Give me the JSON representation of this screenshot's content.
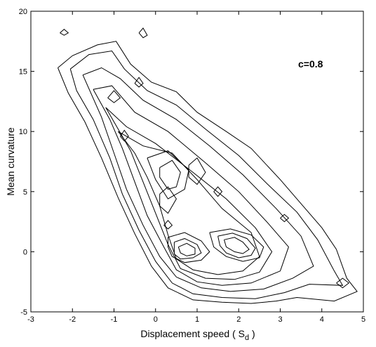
{
  "chart_data": {
    "type": "contour",
    "xlabel": "Displacement speed ( S",
    "xlabel_subscript": "d",
    "xlabel_suffix": " )",
    "ylabel": "Mean curvature",
    "annotation": "c=0.8",
    "xlim": [
      -3,
      5
    ],
    "ylim": [
      -5,
      20
    ],
    "xticks": [
      -3,
      -2,
      -1,
      0,
      1,
      2,
      3,
      4,
      5
    ],
    "yticks": [
      -5,
      0,
      5,
      10,
      15,
      20
    ],
    "xtick_labels": [
      "-3",
      "-2",
      "-1",
      "0",
      "1",
      "2",
      "3",
      "4",
      "5"
    ],
    "ytick_labels": [
      "-5",
      "0",
      "5",
      "10",
      "15",
      "20"
    ],
    "grid": false,
    "line_color": "#000000",
    "contours": [
      {
        "level": 1,
        "points": [
          [
            -2.35,
            15.3
          ],
          [
            -2.0,
            16.3
          ],
          [
            -1.4,
            17.2
          ],
          [
            -0.95,
            17.5
          ],
          [
            -0.6,
            15.6
          ],
          [
            -0.1,
            14.1
          ],
          [
            0.5,
            13.3
          ],
          [
            1.0,
            11.6
          ],
          [
            1.7,
            10.0
          ],
          [
            2.3,
            8.6
          ],
          [
            3.0,
            6.0
          ],
          [
            3.5,
            4.0
          ],
          [
            4.0,
            2.0
          ],
          [
            4.35,
            0.2
          ],
          [
            4.6,
            -2.2
          ],
          [
            4.85,
            -3.3
          ],
          [
            4.3,
            -4.1
          ],
          [
            3.4,
            -3.8
          ],
          [
            2.9,
            -4.1
          ],
          [
            2.3,
            -4.3
          ],
          [
            1.6,
            -4.2
          ],
          [
            0.9,
            -4.0
          ],
          [
            0.3,
            -3.0
          ],
          [
            -0.1,
            -1.2
          ],
          [
            -0.5,
            1.5
          ],
          [
            -0.9,
            4.5
          ],
          [
            -1.3,
            7.8
          ],
          [
            -1.7,
            10.8
          ],
          [
            -2.1,
            13.2
          ],
          [
            -2.35,
            15.3
          ]
        ]
      },
      {
        "level": 2,
        "points": [
          [
            -2.05,
            15.2
          ],
          [
            -1.6,
            16.4
          ],
          [
            -1.05,
            16.7
          ],
          [
            -0.75,
            15.2
          ],
          [
            -0.2,
            13.4
          ],
          [
            0.5,
            12.2
          ],
          [
            1.2,
            10.2
          ],
          [
            2.0,
            8.0
          ],
          [
            2.7,
            5.6
          ],
          [
            3.4,
            3.3
          ],
          [
            3.9,
            1.0
          ],
          [
            4.3,
            -1.6
          ],
          [
            4.5,
            -2.8
          ],
          [
            3.7,
            -2.7
          ],
          [
            3.1,
            -3.4
          ],
          [
            2.4,
            -3.9
          ],
          [
            1.6,
            -3.8
          ],
          [
            0.9,
            -3.5
          ],
          [
            0.4,
            -2.6
          ],
          [
            0.0,
            -0.8
          ],
          [
            -0.4,
            1.8
          ],
          [
            -0.8,
            4.8
          ],
          [
            -1.1,
            7.8
          ],
          [
            -1.5,
            11.0
          ],
          [
            -1.9,
            13.4
          ],
          [
            -2.05,
            15.2
          ]
        ]
      },
      {
        "level": 3,
        "points": [
          [
            -1.75,
            14.7
          ],
          [
            -1.3,
            15.3
          ],
          [
            -0.85,
            14.4
          ],
          [
            -0.3,
            12.6
          ],
          [
            0.5,
            11.0
          ],
          [
            1.3,
            8.8
          ],
          [
            2.1,
            6.4
          ],
          [
            2.9,
            3.6
          ],
          [
            3.5,
            1.3
          ],
          [
            3.8,
            -1.2
          ],
          [
            3.3,
            -2.2
          ],
          [
            2.6,
            -3.1
          ],
          [
            1.8,
            -3.3
          ],
          [
            1.1,
            -3.0
          ],
          [
            0.5,
            -2.1
          ],
          [
            0.1,
            -0.4
          ],
          [
            -0.3,
            2.2
          ],
          [
            -0.7,
            5.2
          ],
          [
            -1.0,
            8.2
          ],
          [
            -1.3,
            11.2
          ],
          [
            -1.75,
            14.7
          ]
        ]
      },
      {
        "level": 4,
        "points": [
          [
            -1.5,
            13.5
          ],
          [
            -1.05,
            13.8
          ],
          [
            -0.5,
            11.6
          ],
          [
            0.3,
            10.0
          ],
          [
            1.2,
            7.4
          ],
          [
            2.0,
            5.0
          ],
          [
            2.7,
            2.4
          ],
          [
            3.2,
            0.4
          ],
          [
            3.0,
            -1.6
          ],
          [
            2.3,
            -2.6
          ],
          [
            1.6,
            -2.8
          ],
          [
            1.0,
            -2.5
          ],
          [
            0.5,
            -1.5
          ],
          [
            0.2,
            0.4
          ],
          [
            -0.2,
            3.0
          ],
          [
            -0.5,
            5.8
          ],
          [
            -0.8,
            8.6
          ],
          [
            -1.1,
            11.0
          ],
          [
            -1.5,
            13.5
          ]
        ]
      },
      {
        "level": 5,
        "points": [
          [
            -1.2,
            12.0
          ],
          [
            -0.7,
            10.4
          ],
          [
            0.0,
            9.0
          ],
          [
            0.9,
            6.6
          ],
          [
            1.7,
            4.4
          ],
          [
            2.4,
            2.0
          ],
          [
            2.8,
            0.0
          ],
          [
            2.5,
            -1.7
          ],
          [
            1.9,
            -2.3
          ],
          [
            1.2,
            -2.2
          ],
          [
            0.6,
            -1.4
          ],
          [
            0.3,
            0.6
          ],
          [
            0.0,
            3.2
          ],
          [
            -0.3,
            5.8
          ],
          [
            -0.6,
            8.4
          ],
          [
            -0.9,
            10.2
          ],
          [
            -1.2,
            12.0
          ]
        ]
      },
      {
        "level": 6,
        "points": [
          [
            -0.9,
            10.0
          ],
          [
            -0.3,
            8.8
          ],
          [
            0.4,
            8.2
          ],
          [
            1.0,
            6.0
          ],
          [
            1.6,
            3.6
          ],
          [
            2.3,
            1.6
          ],
          [
            2.5,
            -0.4
          ],
          [
            2.1,
            -1.6
          ],
          [
            1.5,
            -1.9
          ],
          [
            0.9,
            -1.5
          ],
          [
            0.5,
            -0.6
          ],
          [
            0.3,
            1.4
          ],
          [
            0.1,
            3.8
          ],
          [
            -0.2,
            6.2
          ],
          [
            -0.5,
            8.2
          ],
          [
            -0.9,
            10.0
          ]
        ]
      },
      {
        "level": 7,
        "points": [
          [
            -0.2,
            7.8
          ],
          [
            0.3,
            8.4
          ],
          [
            0.8,
            6.8
          ],
          [
            0.7,
            5.2
          ],
          [
            0.3,
            4.4
          ],
          [
            0.0,
            6.0
          ],
          [
            -0.2,
            7.8
          ]
        ]
      },
      {
        "level": 8,
        "points": [
          [
            0.1,
            7.0
          ],
          [
            0.4,
            7.6
          ],
          [
            0.6,
            6.6
          ],
          [
            0.5,
            5.4
          ],
          [
            0.3,
            5.2
          ],
          [
            0.1,
            6.2
          ],
          [
            0.1,
            7.0
          ]
        ]
      },
      {
        "level": 9,
        "points": [
          [
            0.1,
            4.8
          ],
          [
            0.3,
            5.4
          ],
          [
            0.5,
            4.4
          ],
          [
            0.3,
            3.2
          ],
          [
            0.1,
            3.8
          ],
          [
            0.1,
            4.8
          ]
        ]
      },
      {
        "level": 10,
        "points": [
          [
            0.8,
            7.2
          ],
          [
            1.0,
            7.8
          ],
          [
            1.2,
            6.6
          ],
          [
            1.0,
            5.6
          ],
          [
            0.8,
            6.2
          ],
          [
            0.8,
            7.2
          ]
        ]
      },
      {
        "level": 11,
        "points": [
          [
            0.3,
            1.2
          ],
          [
            0.7,
            1.6
          ],
          [
            1.1,
            0.9
          ],
          [
            1.3,
            0.0
          ],
          [
            1.1,
            -0.7
          ],
          [
            0.7,
            -0.9
          ],
          [
            0.4,
            -0.4
          ],
          [
            0.3,
            0.4
          ],
          [
            0.3,
            1.2
          ]
        ]
      },
      {
        "level": 12,
        "points": [
          [
            0.45,
            0.8
          ],
          [
            0.7,
            1.1
          ],
          [
            1.0,
            0.6
          ],
          [
            1.1,
            -0.1
          ],
          [
            0.9,
            -0.5
          ],
          [
            0.6,
            -0.6
          ],
          [
            0.45,
            -0.2
          ],
          [
            0.45,
            0.8
          ]
        ]
      },
      {
        "level": 13,
        "points": [
          [
            0.55,
            0.4
          ],
          [
            0.75,
            0.7
          ],
          [
            0.95,
            0.3
          ],
          [
            0.95,
            -0.2
          ],
          [
            0.75,
            -0.35
          ],
          [
            0.6,
            -0.1
          ],
          [
            0.55,
            0.4
          ]
        ]
      },
      {
        "level": 14,
        "points": [
          [
            1.3,
            1.6
          ],
          [
            1.8,
            1.9
          ],
          [
            2.3,
            1.4
          ],
          [
            2.6,
            0.4
          ],
          [
            2.5,
            -0.5
          ],
          [
            2.1,
            -0.8
          ],
          [
            1.7,
            -0.4
          ],
          [
            1.4,
            0.4
          ],
          [
            1.3,
            1.6
          ]
        ]
      },
      {
        "level": 15,
        "points": [
          [
            1.5,
            1.3
          ],
          [
            1.85,
            1.55
          ],
          [
            2.2,
            1.1
          ],
          [
            2.4,
            0.3
          ],
          [
            2.3,
            -0.3
          ],
          [
            2.0,
            -0.5
          ],
          [
            1.7,
            -0.1
          ],
          [
            1.55,
            0.5
          ],
          [
            1.5,
            1.3
          ]
        ]
      },
      {
        "level": 16,
        "points": [
          [
            1.65,
            1.0
          ],
          [
            1.9,
            1.2
          ],
          [
            2.1,
            0.8
          ],
          [
            2.25,
            0.2
          ],
          [
            2.1,
            -0.15
          ],
          [
            1.9,
            0.0
          ],
          [
            1.7,
            0.4
          ],
          [
            1.65,
            1.0
          ]
        ]
      },
      {
        "level": 17,
        "points": [
          [
            -2.3,
            18.2
          ],
          [
            -2.2,
            18.5
          ],
          [
            -2.1,
            18.2
          ],
          [
            -2.2,
            18.0
          ],
          [
            -2.3,
            18.2
          ]
        ]
      },
      {
        "level": 18,
        "points": [
          [
            -0.4,
            18.2
          ],
          [
            -0.3,
            18.6
          ],
          [
            -0.2,
            18.0
          ],
          [
            -0.3,
            17.8
          ],
          [
            -0.4,
            18.2
          ]
        ]
      },
      {
        "level": 19,
        "points": [
          [
            -1.15,
            12.8
          ],
          [
            -1.0,
            13.4
          ],
          [
            -0.85,
            12.8
          ],
          [
            -1.0,
            12.4
          ],
          [
            -1.15,
            12.8
          ]
        ]
      },
      {
        "level": 20,
        "points": [
          [
            -0.5,
            14.0
          ],
          [
            -0.4,
            14.5
          ],
          [
            -0.3,
            14.0
          ],
          [
            -0.4,
            13.7
          ],
          [
            -0.5,
            14.0
          ]
        ]
      },
      {
        "level": 21,
        "points": [
          [
            3.0,
            2.8
          ],
          [
            3.1,
            3.1
          ],
          [
            3.2,
            2.8
          ],
          [
            3.1,
            2.5
          ],
          [
            3.0,
            2.8
          ]
        ]
      },
      {
        "level": 22,
        "points": [
          [
            4.35,
            -2.6
          ],
          [
            4.5,
            -2.2
          ],
          [
            4.65,
            -2.6
          ],
          [
            4.5,
            -3.0
          ],
          [
            4.35,
            -2.6
          ]
        ]
      },
      {
        "level": 23,
        "points": [
          [
            -0.85,
            9.6
          ],
          [
            -0.75,
            10.1
          ],
          [
            -0.65,
            9.6
          ],
          [
            -0.75,
            9.2
          ],
          [
            -0.85,
            9.6
          ]
        ]
      },
      {
        "level": 24,
        "points": [
          [
            0.2,
            2.2
          ],
          [
            0.3,
            2.6
          ],
          [
            0.4,
            2.2
          ],
          [
            0.3,
            1.9
          ],
          [
            0.2,
            2.2
          ]
        ]
      },
      {
        "level": 25,
        "points": [
          [
            1.4,
            5.0
          ],
          [
            1.5,
            5.4
          ],
          [
            1.6,
            5.0
          ],
          [
            1.5,
            4.6
          ],
          [
            1.4,
            5.0
          ]
        ]
      }
    ]
  }
}
